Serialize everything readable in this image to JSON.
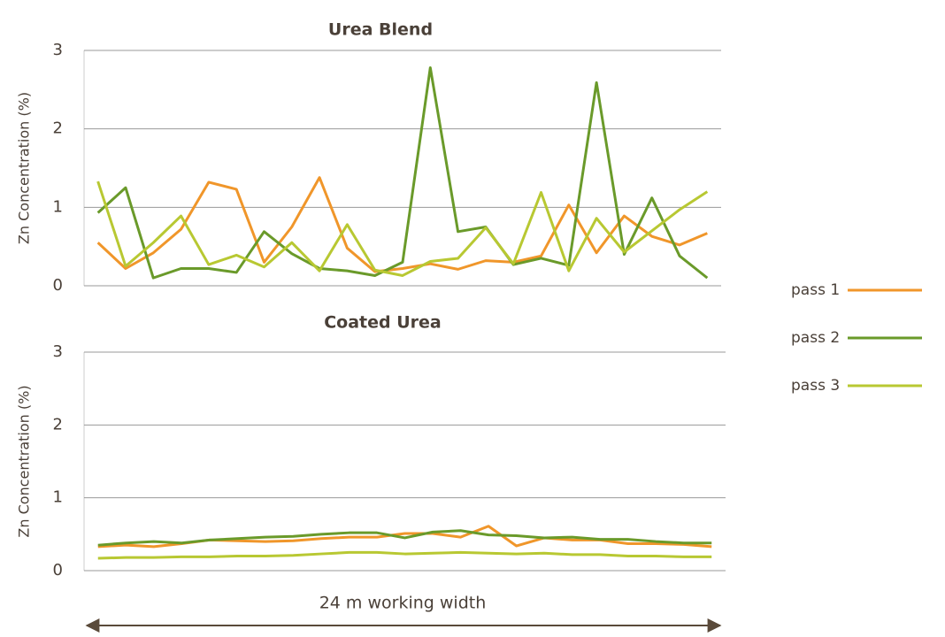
{
  "chart_data": [
    {
      "type": "line",
      "title": "Urea Blend",
      "ylabel": "Zn Concentration (%)",
      "ylim": [
        0,
        3
      ],
      "yticks": [
        0,
        1,
        2,
        3
      ],
      "grid": true,
      "series": [
        {
          "name": "pass 1",
          "color": "#f0962a",
          "values": [
            0.55,
            0.22,
            0.42,
            0.72,
            1.32,
            1.23,
            0.3,
            0.75,
            1.38,
            0.48,
            0.18,
            0.22,
            0.28,
            0.21,
            0.32,
            0.3,
            0.38,
            1.03,
            0.42,
            0.89,
            0.63,
            0.52,
            0.67
          ]
        },
        {
          "name": "pass 2",
          "color": "#6a9a2a",
          "values": [
            0.93,
            1.25,
            0.1,
            0.22,
            0.22,
            0.17,
            0.69,
            0.41,
            0.22,
            0.19,
            0.13,
            0.3,
            2.78,
            0.69,
            0.75,
            0.27,
            0.35,
            0.26,
            2.59,
            0.4,
            1.12,
            0.38,
            0.1
          ]
        },
        {
          "name": "pass 3",
          "color": "#b8c832",
          "values": [
            1.33,
            0.25,
            0.55,
            0.89,
            0.27,
            0.39,
            0.24,
            0.55,
            0.19,
            0.78,
            0.2,
            0.13,
            0.31,
            0.35,
            0.74,
            0.28,
            1.19,
            0.19,
            0.86,
            0.43,
            0.7,
            0.97,
            1.2
          ]
        }
      ]
    },
    {
      "type": "line",
      "title": "Coated Urea",
      "ylabel": "Zn Concentration (%)",
      "xlabel": "24 m working width",
      "ylim": [
        0,
        3
      ],
      "yticks": [
        0,
        1,
        2,
        3
      ],
      "grid": true,
      "series": [
        {
          "color": "#f0962a",
          "values": [
            0.33,
            0.35,
            0.33,
            0.37,
            0.42,
            0.41,
            0.4,
            0.41,
            0.44,
            0.46,
            0.46,
            0.51,
            0.51,
            0.46,
            0.61,
            0.34,
            0.45,
            0.42,
            0.42,
            0.37,
            0.37,
            0.36,
            0.33
          ]
        },
        {
          "color": "#6a9a2a",
          "values": [
            0.35,
            0.38,
            0.4,
            0.38,
            0.42,
            0.44,
            0.46,
            0.47,
            0.5,
            0.52,
            0.52,
            0.45,
            0.53,
            0.55,
            0.49,
            0.48,
            0.45,
            0.46,
            0.43,
            0.43,
            0.4,
            0.38,
            0.38
          ]
        },
        {
          "color": "#b8c832",
          "values": [
            0.17,
            0.18,
            0.18,
            0.19,
            0.19,
            0.2,
            0.2,
            0.21,
            0.23,
            0.25,
            0.25,
            0.23,
            0.24,
            0.25,
            0.24,
            0.23,
            0.24,
            0.22,
            0.22,
            0.2,
            0.2,
            0.19,
            0.19
          ]
        }
      ]
    }
  ]
}
